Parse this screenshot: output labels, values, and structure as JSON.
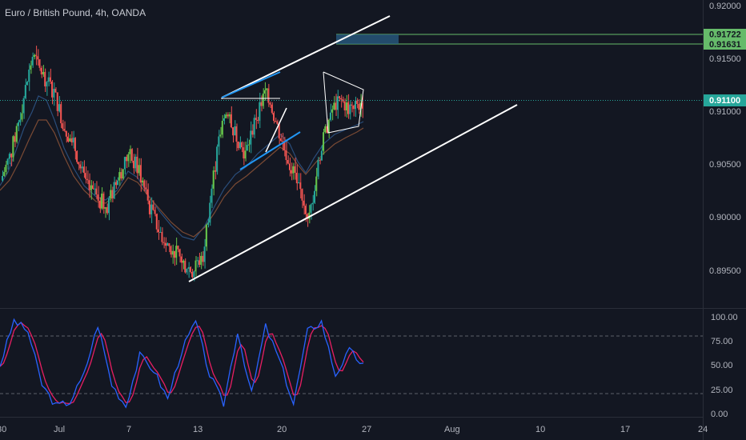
{
  "title": "Euro / British Pound, 4h, OANDA",
  "colors": {
    "background": "#131722",
    "up": "#26a69a",
    "up_bright": "#66c34a",
    "down": "#ef5350",
    "ema_fast": "#2a4d7a",
    "ema_slow": "#7a4a34",
    "stoch_k": "#2962ff",
    "stoch_d": "#e91e63",
    "trendline": "#ffffff",
    "pattern_blue": "#2196f3",
    "level_green": "#66bb6a",
    "last_price": "#26a69a"
  },
  "price_axis": {
    "ticks": [
      "0.92000",
      "0.91500",
      "0.91000",
      "0.90500",
      "0.90000",
      "0.89500"
    ],
    "range": [
      0.8925,
      0.9205
    ]
  },
  "levels": [
    {
      "label": "0.91722",
      "value": 0.91722
    },
    {
      "label": "0.91631",
      "value": 0.91631
    }
  ],
  "last_price": {
    "label": "0.91100",
    "value": 0.911
  },
  "stoch_axis": {
    "ticks": [
      "100.00",
      "75.00",
      "50.00",
      "25.00",
      "0.00"
    ],
    "dashed_levels": [
      80,
      20
    ]
  },
  "time_axis": {
    "labels": [
      "30",
      "Jul",
      "7",
      "13",
      "20",
      "27",
      "Aug",
      "10",
      "17",
      "24"
    ]
  },
  "chart_data": {
    "type": "candlestick",
    "symbol": "EURGBP",
    "timeframe": "4h",
    "price_series_close_approx": [
      0.9035,
      0.9062,
      0.9105,
      0.9152,
      0.9134,
      0.9118,
      0.9085,
      0.9065,
      0.903,
      0.9018,
      0.9012,
      0.9035,
      0.906,
      0.9045,
      0.901,
      0.8985,
      0.8972,
      0.896,
      0.895,
      0.8965,
      0.904,
      0.91,
      0.908,
      0.906,
      0.9095,
      0.912,
      0.9085,
      0.9055,
      0.903,
      0.9,
      0.906,
      0.91,
      0.911,
      0.91,
      0.911
    ],
    "stochastic_approx": [
      50,
      96,
      85,
      30,
      8,
      12,
      40,
      92,
      30,
      8,
      60,
      45,
      15,
      65,
      95,
      40,
      10,
      85,
      20,
      90,
      55,
      10,
      85,
      95,
      40,
      65,
      50
    ]
  }
}
